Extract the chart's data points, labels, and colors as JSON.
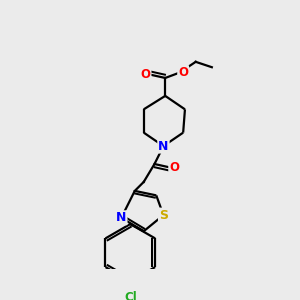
{
  "background_color": "#ebebeb",
  "bond_color": "#000000",
  "atom_colors": {
    "O": "#ff0000",
    "N": "#0000ff",
    "S": "#ccaa00",
    "Cl": "#22aa22",
    "C": "#000000"
  },
  "figsize": [
    3.0,
    3.0
  ],
  "dpi": 100,
  "lw": 1.6,
  "fs": 8.5
}
